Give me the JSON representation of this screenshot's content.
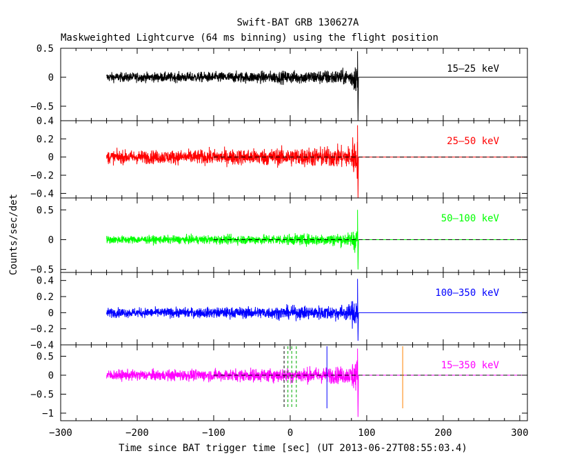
{
  "chart_data": {
    "type": "line",
    "title": "Swift-BAT GRB 130627A",
    "subtitle": "Maskweighted Lightcurve (64 ms binning) using the flight position",
    "xlabel": "Time since BAT trigger time [sec] (UT 2013-06-27T08:55:03.4)",
    "ylabel": "Counts/sec/det",
    "xlim": [
      -300,
      310
    ],
    "xticks": [
      -300,
      -200,
      -100,
      0,
      100,
      200,
      300
    ],
    "data_range": [
      -240,
      88
    ],
    "dashed_baseline_from": -100,
    "panels": [
      {
        "name": "15-25 keV",
        "label": "15–25 keV",
        "color": "#000000",
        "ylim": [
          -0.75,
          0.5
        ],
        "yticks": [
          0.5,
          0,
          -0.5
        ],
        "ytick_labels": [
          "0.5",
          "0",
          "−0.5"
        ],
        "noise_amplitude": 0.22,
        "dashed_baseline": false,
        "spike_range": [
          -0.75,
          0.45
        ]
      },
      {
        "name": "25-50 keV",
        "label": "25–50 keV",
        "color": "#ff0000",
        "ylim": [
          -0.45,
          0.4
        ],
        "yticks": [
          0.4,
          0.2,
          0,
          -0.2,
          -0.4
        ],
        "ytick_labels": [
          "0.4",
          "0.2",
          "0",
          "−0.2",
          "−0.4"
        ],
        "noise_amplitude": 0.2,
        "dashed_baseline": true,
        "spike_range": [
          -0.45,
          0.35
        ]
      },
      {
        "name": "50-100 keV",
        "label": "50–100 keV",
        "color": "#00ff00",
        "ylim": [
          -0.55,
          0.7
        ],
        "yticks": [
          0.5,
          0,
          -0.5
        ],
        "ytick_labels": [
          "0.5",
          "0",
          "−0.5"
        ],
        "noise_amplitude": 0.18,
        "dashed_baseline": true,
        "spike_range": [
          -0.5,
          0.5
        ]
      },
      {
        "name": "100-350 keV",
        "label": "100–350 keV",
        "color": "#0000ff",
        "ylim": [
          -0.4,
          0.5
        ],
        "yticks": [
          0.4,
          0.2,
          0,
          -0.2,
          -0.4
        ],
        "ytick_labels": [
          "0.4",
          "0.2",
          "0",
          "−0.2",
          "−0.4"
        ],
        "noise_amplitude": 0.16,
        "dashed_baseline": false,
        "spike_range": [
          -0.35,
          0.42
        ]
      },
      {
        "name": "15-350 keV",
        "label": "15–350 keV",
        "color": "#ff00ff",
        "ylim": [
          -1.2,
          0.8
        ],
        "yticks": [
          0.5,
          0,
          -0.5,
          -1
        ],
        "ytick_labels": [
          "0.5",
          "0",
          "−0.5",
          "−1"
        ],
        "noise_amplitude": 0.38,
        "dashed_baseline": true,
        "spike_range": [
          -1.1,
          0.7
        ],
        "markers": [
          {
            "x": -8,
            "color": "#000000",
            "style": "dashed"
          },
          {
            "x": -3,
            "color": "#00aa00",
            "style": "dashed"
          },
          {
            "x": 2,
            "color": "#00aa00",
            "style": "dashed"
          },
          {
            "x": 8,
            "color": "#00aa00",
            "style": "dashed"
          },
          {
            "x": 48,
            "color": "#0000ff",
            "style": "solid"
          },
          {
            "x": 147,
            "color": "#ff8000",
            "style": "solid"
          }
        ]
      }
    ]
  }
}
